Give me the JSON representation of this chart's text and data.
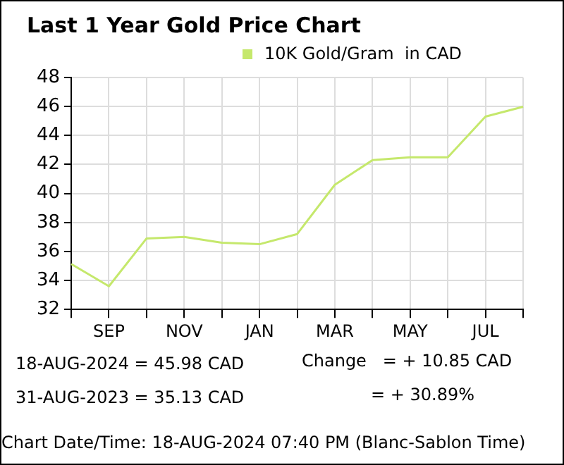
{
  "chart_data": {
    "type": "line",
    "title": "Last 1 Year Gold Price Chart",
    "categories": [
      null,
      "SEP",
      null,
      "NOV",
      null,
      "JAN",
      null,
      "MAR",
      null,
      "MAY",
      null,
      "JUL",
      null
    ],
    "series": [
      {
        "name": "10K Gold/Gram  in CAD",
        "color": "#c5e86c",
        "values": [
          35.13,
          33.6,
          36.9,
          37.0,
          36.6,
          36.5,
          37.2,
          40.6,
          42.3,
          42.5,
          42.5,
          45.3,
          45.98
        ]
      }
    ],
    "ylim": [
      32,
      48
    ],
    "yticks": [
      32,
      34,
      36,
      38,
      40,
      42,
      44,
      46,
      48
    ],
    "grid": true,
    "legend": "top",
    "marker": "none",
    "annotations": [
      "18-AUG-2024 = 45.98 CAD",
      "31-AUG-2023 = 35.13 CAD",
      "Change   = + 10.85 CAD",
      "= + 30.89%",
      "Chart Date/Time: 18-AUG-2024 07:40 PM (Blanc-Sablon Time)"
    ]
  }
}
